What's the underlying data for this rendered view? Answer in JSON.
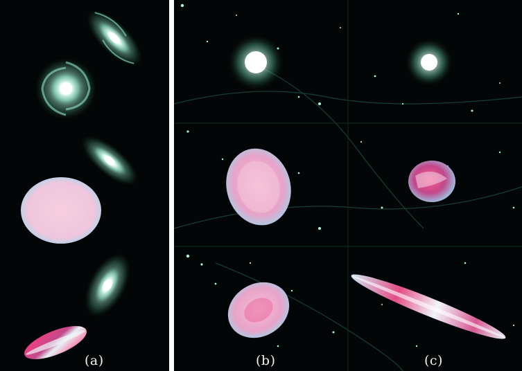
{
  "captions": {
    "a": "(a)",
    "b": "(b)",
    "c": "(c)"
  },
  "colors": {
    "background": "#030606",
    "galaxy_core": "#ffffff",
    "galaxy_arm": "#7ee8c4",
    "ellipsoid_base": "#f3c9dc",
    "ellipsoid_rim": "#bfe4f0",
    "ellipsoid_hot": "#ff3a7a"
  }
}
